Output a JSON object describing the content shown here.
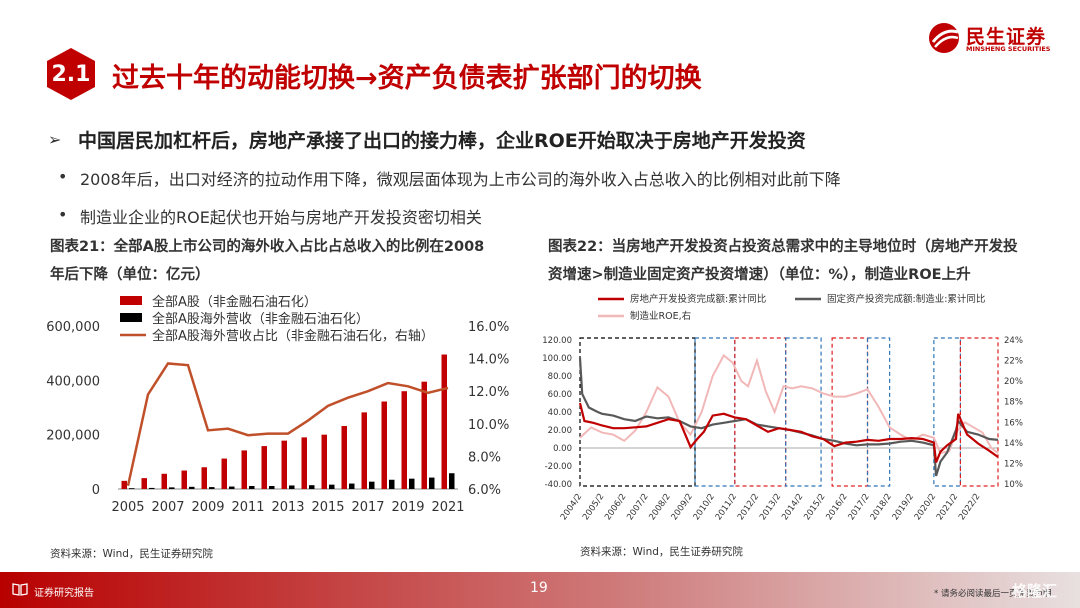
{
  "header": {
    "brand_cn": "民生证券",
    "brand_en": "MINSHENG SECURITIES",
    "section_number": "2.1",
    "title": "过去十年的动能切换→资产负债表扩张部门的切换"
  },
  "heading": {
    "arrow": "➢",
    "text": "中国居民加杠杆后，房地产承接了出口的接力棒，企业ROE开始取决于房地产开发投资"
  },
  "bullets": [
    {
      "dot": "•",
      "text": "2008年后，出口对经济的拉动作用下降，微观层面体现为上市公司的海外收入占总收入的比例相对此前下降"
    },
    {
      "dot": "•",
      "text": "制造业企业的ROE起伏也开始与房地产开发投资密切相关"
    }
  ],
  "left_chart": {
    "title_line1": "图表21：全部A股上市公司的海外收入占比占总收入的比例在2008",
    "title_line2": "年后下降（单位：亿元）",
    "source": "资料来源：Wind，民生证券研究院"
  },
  "right_chart": {
    "title_line1": "图表22：当房地产开发投资占投资总需求中的主导地位时（房地产开发投",
    "title_line2": "资增速>制造业固定资产投资增速）（单位：%），制造业ROE上升",
    "source": "资料来源：Wind，民生证券研究院"
  },
  "footer": {
    "label": "证券研究报告",
    "page": "19",
    "note": "* 请务必阅读最后一页免责声明",
    "watermark": "格隆汇"
  },
  "colors": {
    "brand_red": "#c00000",
    "bar_red": "#c00000",
    "bar_black": "#000000",
    "line_orange": "#c0502a",
    "line_red": "#c00000",
    "line_gray": "#595959",
    "line_pink": "#f2b8b8",
    "box_black": "#000000",
    "box_blue": "#2e75b6",
    "box_red": "#e02020"
  },
  "chart_data": [
    {
      "type": "bar",
      "categories": [
        "2005",
        "2006",
        "2007",
        "2008",
        "2009",
        "2010",
        "2011",
        "2012",
        "2013",
        "2014",
        "2015",
        "2016",
        "2017",
        "2018",
        "2019",
        "2020",
        "2021"
      ],
      "xtick_labels": [
        "2005",
        "2007",
        "2009",
        "2011",
        "2013",
        "2015",
        "2017",
        "2019",
        "2021"
      ],
      "series": [
        {
          "name": "全部A股（非金融石油石化）",
          "type": "bar",
          "axis": "left",
          "values": [
            30000,
            40000,
            56000,
            68000,
            80000,
            112000,
            142000,
            158000,
            178000,
            190000,
            200000,
            232000,
            282000,
            322000,
            360000,
            395000,
            495000
          ]
        },
        {
          "name": "全部A股海外营收（非金融石油石化）",
          "type": "bar",
          "axis": "left",
          "values": [
            3000,
            4000,
            6000,
            8000,
            7000,
            9000,
            11000,
            11000,
            13000,
            14000,
            16000,
            20000,
            27000,
            34000,
            38000,
            42000,
            58000
          ]
        },
        {
          "name": "全部A股海外营收占比（非金融石油石化，右轴）",
          "type": "line",
          "axis": "right",
          "values": [
            6.2,
            11.8,
            13.7,
            13.6,
            9.6,
            9.7,
            9.3,
            9.4,
            9.4,
            10.2,
            11.1,
            11.6,
            12.0,
            12.5,
            12.3,
            11.9,
            12.2
          ]
        }
      ],
      "left_axis": {
        "ticks": [
          "0",
          "200,000",
          "400,000",
          "600,000"
        ],
        "range": [
          0,
          600000
        ]
      },
      "right_axis": {
        "ticks": [
          "6.0%",
          "8.0%",
          "10.0%",
          "12.0%",
          "14.0%",
          "16.0%"
        ],
        "range": [
          6,
          16
        ]
      },
      "legend_position": "top-left",
      "grid": false
    },
    {
      "type": "line",
      "xtick_labels": [
        "2004/2",
        "2005/2",
        "2006/2",
        "2007/2",
        "2008/2",
        "2009/2",
        "2010/2",
        "2011/2",
        "2012/2",
        "2013/2",
        "2014/2",
        "2015/2",
        "2016/2",
        "2017/2",
        "2018/2",
        "2019/2",
        "2020/2",
        "2021/2",
        "2022/2"
      ],
      "x_range": [
        2004.0,
        2022.9
      ],
      "left_axis": {
        "ticks": [
          "-40.00",
          "-20.00",
          "0.00",
          "20.00",
          "40.00",
          "60.00",
          "80.00",
          "100.00",
          "120.00"
        ],
        "range": [
          -40,
          120
        ]
      },
      "right_axis": {
        "ticks": [
          "10%",
          "12%",
          "14%",
          "16%",
          "18%",
          "20%",
          "22%",
          "24%"
        ],
        "range": [
          10,
          24
        ]
      },
      "legend_position": "top",
      "grid": false,
      "series": [
        {
          "name": "房地产开发投资完成额:累计同比",
          "axis": "left",
          "color": "#c00000",
          "x": [
            2004.0,
            2004.2,
            2004.6,
            2005.0,
            2005.5,
            2006.0,
            2006.5,
            2007.0,
            2007.5,
            2008.0,
            2008.5,
            2009.0,
            2009.3,
            2009.6,
            2010.0,
            2010.5,
            2011.0,
            2011.5,
            2012.0,
            2012.5,
            2013.0,
            2013.5,
            2014.0,
            2014.5,
            2015.0,
            2015.5,
            2016.0,
            2016.5,
            2017.0,
            2017.5,
            2018.0,
            2018.5,
            2019.0,
            2019.5,
            2020.0,
            2020.1,
            2020.3,
            2020.6,
            2021.0,
            2021.1,
            2021.5,
            2022.0,
            2022.5,
            2022.9
          ],
          "y": [
            50,
            30,
            28,
            25,
            22,
            22,
            23,
            24,
            28,
            32,
            30,
            1,
            10,
            18,
            36,
            38,
            34,
            32,
            25,
            18,
            22,
            20,
            18,
            13,
            10,
            2,
            6,
            7,
            9,
            8,
            10,
            10,
            11,
            10,
            6,
            -16,
            -4,
            3,
            10,
            38,
            15,
            5,
            -3,
            -10
          ]
        },
        {
          "name": "固定资产投资完成额:制造业:累计同比",
          "axis": "left",
          "color": "#595959",
          "x": [
            2004.0,
            2004.1,
            2004.4,
            2004.8,
            2005.0,
            2005.5,
            2006.0,
            2006.5,
            2007.0,
            2007.5,
            2008.0,
            2008.5,
            2009.0,
            2009.5,
            2010.0,
            2010.5,
            2011.0,
            2011.5,
            2012.0,
            2012.5,
            2013.0,
            2013.5,
            2014.0,
            2014.5,
            2015.0,
            2015.5,
            2016.0,
            2016.5,
            2017.0,
            2017.5,
            2018.0,
            2018.5,
            2019.0,
            2019.5,
            2020.0,
            2020.1,
            2020.3,
            2020.6,
            2021.0,
            2021.1,
            2021.5,
            2022.0,
            2022.5,
            2022.9
          ],
          "y": [
            100,
            60,
            45,
            40,
            38,
            36,
            32,
            30,
            35,
            33,
            34,
            30,
            24,
            22,
            26,
            28,
            30,
            32,
            26,
            24,
            22,
            20,
            17,
            14,
            10,
            8,
            5,
            3,
            4,
            4,
            5,
            7,
            8,
            6,
            3,
            -31,
            -15,
            -5,
            20,
            30,
            18,
            15,
            10,
            9
          ]
        },
        {
          "name": "制造业ROE,右",
          "axis": "right",
          "color": "#f2b8b8",
          "x": [
            2004.0,
            2004.5,
            2005.0,
            2005.5,
            2006.0,
            2006.5,
            2007.0,
            2007.5,
            2008.0,
            2008.5,
            2009.0,
            2009.5,
            2010.0,
            2010.5,
            2010.9,
            2011.3,
            2011.6,
            2012.0,
            2012.4,
            2012.8,
            2013.2,
            2013.6,
            2014.0,
            2014.5,
            2015.0,
            2015.5,
            2016.0,
            2016.5,
            2017.0,
            2017.5,
            2018.0,
            2018.5,
            2019.0,
            2019.5,
            2020.0,
            2020.3,
            2020.7,
            2021.0,
            2021.4,
            2021.8,
            2022.2,
            2022.6,
            2022.9
          ],
          "y": [
            14.5,
            15.5,
            15,
            14.8,
            14.2,
            15.2,
            17,
            19.4,
            18.5,
            16,
            14.8,
            17,
            20.5,
            22.5,
            21.8,
            20,
            19.5,
            22,
            19,
            17,
            19.5,
            19.3,
            19.5,
            19.3,
            18.8,
            18.5,
            18.5,
            18.8,
            19.2,
            17.5,
            15.5,
            14.8,
            14.2,
            14.8,
            14.5,
            13,
            13.2,
            15,
            16,
            15.5,
            15,
            13.5,
            13
          ]
        }
      ],
      "boxes": [
        {
          "color": "black",
          "x": [
            2004.0,
            2009.2
          ]
        },
        {
          "color": "blue",
          "x": [
            2009.2,
            2011.0
          ]
        },
        {
          "color": "red",
          "x": [
            2011.0,
            2013.3
          ]
        },
        {
          "color": "blue",
          "x": [
            2013.3,
            2014.9
          ]
        },
        {
          "color": "red",
          "x": [
            2015.4,
            2017.0
          ]
        },
        {
          "color": "blue",
          "x": [
            2017.0,
            2018.0
          ]
        },
        {
          "color": "blue",
          "x": [
            2020.0,
            2021.2
          ]
        },
        {
          "color": "red",
          "x": [
            2021.2,
            2022.9
          ]
        }
      ]
    }
  ]
}
